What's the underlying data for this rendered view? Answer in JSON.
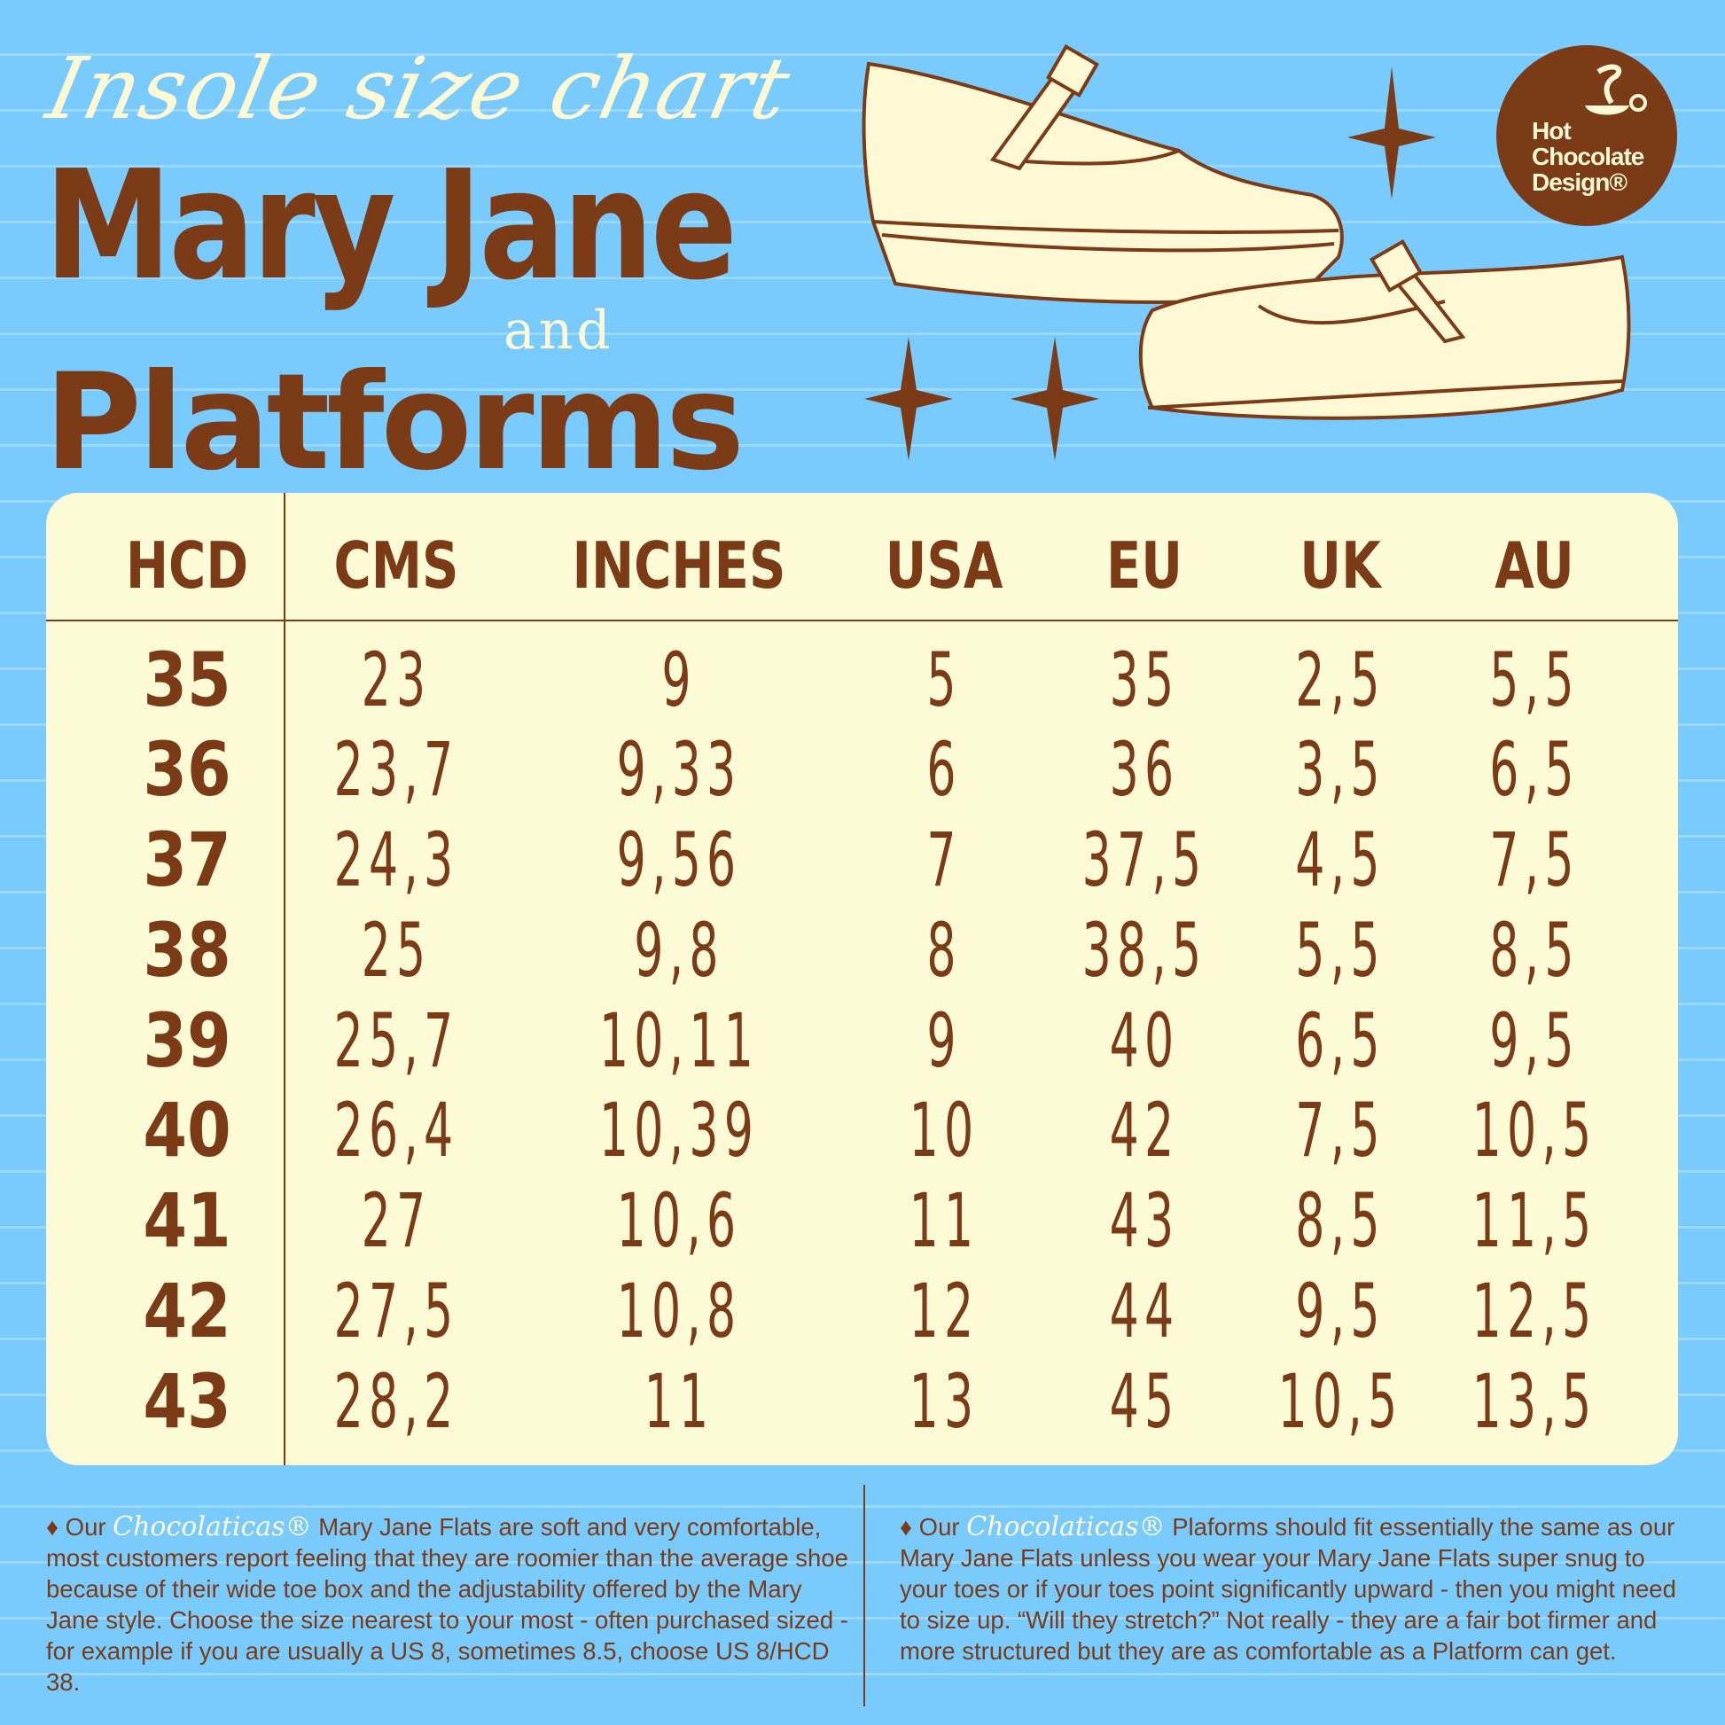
{
  "header": {
    "script_title": "Insole size chart",
    "title_line1": "Mary Jane",
    "connector": "and",
    "title_line2": "Platforms"
  },
  "logo": {
    "text_line1": "Hot",
    "text_line2": "Chocolate",
    "text_line3": "Design®"
  },
  "table": {
    "columns": [
      "HCD",
      "CMS",
      "INCHES",
      "USA",
      "EU",
      "UK",
      "AU"
    ],
    "rows": [
      [
        "35",
        "23",
        "9",
        "5",
        "35",
        "2,5",
        "5,5"
      ],
      [
        "36",
        "23,7",
        "9,33",
        "6",
        "36",
        "3,5",
        "6,5"
      ],
      [
        "37",
        "24,3",
        "9,56",
        "7",
        "37,5",
        "4,5",
        "7,5"
      ],
      [
        "38",
        "25",
        "9,8",
        "8",
        "38,5",
        "5,5",
        "8,5"
      ],
      [
        "39",
        "25,7",
        "10,11",
        "9",
        "40",
        "6,5",
        "9,5"
      ],
      [
        "40",
        "26,4",
        "10,39",
        "10",
        "42",
        "7,5",
        "10,5"
      ],
      [
        "41",
        "27",
        "10,6",
        "11",
        "43",
        "8,5",
        "11,5"
      ],
      [
        "42",
        "27,5",
        "10,8",
        "12",
        "44",
        "9,5",
        "12,5"
      ],
      [
        "43",
        "28,2",
        "11",
        "13",
        "45",
        "10,5",
        "13,5"
      ]
    ]
  },
  "footer": {
    "brand": "Chocolaticas®",
    "left": {
      "prefix": "♦ Our",
      "text": "Mary Jane Flats are soft and very comfortable, most customers report feeling that they are roomier than the average shoe because of their wide toe box and the adjustability offered by the Mary Jane style. Choose the size nearest to your most - often purchased sized - for example if you are usually a US 8, sometimes 8.5, choose US 8/HCD 38."
    },
    "right": {
      "prefix": "♦ Our",
      "text": "Plaforms should fit essentially the same as our Mary Jane Flats unless you wear your Mary Jane Flats super snug to your toes or if your toes point significantly upward - then you might need to size  up. “Will they stretch?” Not really - they are a fair bot firmer and more structured but they are as comfortable as a Platform can get."
    }
  },
  "colors": {
    "background": "#7acbfd",
    "brown": "#7a3b16",
    "cream": "#fdfad6"
  }
}
